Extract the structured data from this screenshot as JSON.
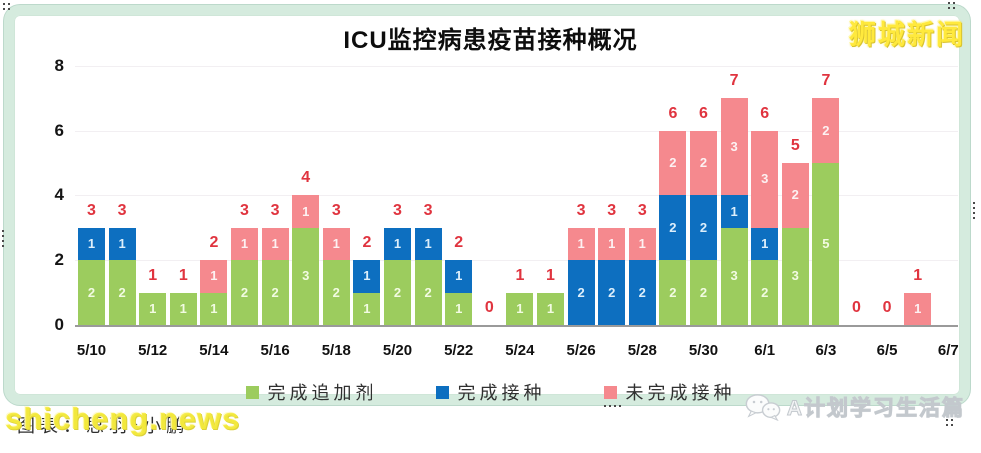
{
  "title": "ICU监控病患疫苗接种概况",
  "watermarks": {
    "top_right": "狮城新闻",
    "bottom_left_credit": "图表：思羽•小鹏",
    "bottom_left_url": "shicheng.news",
    "bottom_right_account": "A计划学习生活篇",
    "bottom_right_icon": "wechat-icon"
  },
  "legend": [
    {
      "label": "完成追加剂",
      "color": "#9ccc5e"
    },
    {
      "label": "完成接种",
      "color": "#0d6fc0"
    },
    {
      "label": "未完成接种",
      "color": "#f5898e"
    }
  ],
  "colors": {
    "total_label": "#e0343f",
    "frame": "#d5ebde",
    "axis_line": "#9a9a9a",
    "gridline": "#f2eff2"
  },
  "chart_data": {
    "type": "bar",
    "stacked": true,
    "title": "ICU监控病患疫苗接种概况",
    "categories": [
      "5/10",
      "5/11",
      "5/12",
      "5/13",
      "5/14",
      "5/15",
      "5/16",
      "5/17",
      "5/18",
      "5/19",
      "5/20",
      "5/21",
      "5/22",
      "5/23",
      "5/24",
      "5/25",
      "5/26",
      "5/27",
      "5/28",
      "5/29",
      "5/30",
      "5/31",
      "6/1",
      "6/2",
      "6/3",
      "6/4",
      "6/5",
      "6/6",
      "6/7"
    ],
    "x_tick_labels": [
      "5/10",
      "5/12",
      "5/14",
      "5/16",
      "5/18",
      "5/20",
      "5/22",
      "5/24",
      "5/26",
      "5/28",
      "5/30",
      "6/1",
      "6/3",
      "6/5",
      "6/7"
    ],
    "ylim": [
      0,
      8
    ],
    "yticks": [
      0,
      2,
      4,
      6,
      8
    ],
    "legend_position": "bottom",
    "grid": true,
    "series": [
      {
        "name": "完成追加剂",
        "key": "booster-done",
        "color": "#9ccc5e",
        "label_color": "#f2fbe2",
        "values": [
          2,
          2,
          1,
          1,
          1,
          2,
          2,
          3,
          2,
          1,
          2,
          2,
          1,
          0,
          1,
          1,
          0,
          0,
          0,
          2,
          2,
          3,
          2,
          3,
          5,
          0,
          0,
          0,
          null
        ]
      },
      {
        "name": "完成接种",
        "key": "fully-vaccinated",
        "color": "#0d6fc0",
        "label_color": "#ddeffb",
        "values": [
          1,
          1,
          0,
          0,
          0,
          0,
          0,
          0,
          0,
          1,
          1,
          1,
          1,
          0,
          0,
          0,
          2,
          2,
          2,
          2,
          2,
          1,
          1,
          0,
          0,
          0,
          0,
          0,
          null
        ]
      },
      {
        "name": "未完成接种",
        "key": "not-fully-vaccinated",
        "color": "#f5898e",
        "label_color": "#fdf1f2",
        "values": [
          0,
          0,
          0,
          0,
          1,
          1,
          1,
          1,
          1,
          0,
          0,
          0,
          0,
          0,
          0,
          0,
          1,
          1,
          1,
          2,
          2,
          3,
          3,
          2,
          2,
          0,
          0,
          1,
          null
        ]
      }
    ],
    "totals": [
      3,
      3,
      1,
      1,
      2,
      3,
      3,
      4,
      3,
      2,
      3,
      3,
      2,
      0,
      1,
      1,
      3,
      3,
      3,
      6,
      6,
      7,
      6,
      5,
      7,
      0,
      0,
      1,
      null
    ]
  }
}
